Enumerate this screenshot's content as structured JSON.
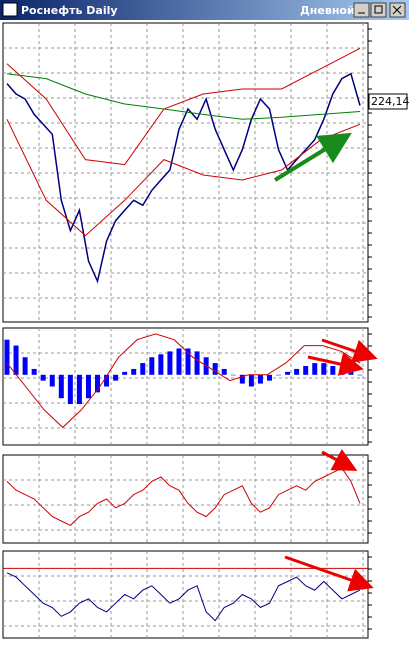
{
  "window": {
    "title": "Роснефть Daily",
    "mode": "Дневной",
    "price_label": "224,14"
  },
  "chart_data": [
    {
      "type": "line",
      "ylim": [
        172,
        244
      ],
      "series": [
        {
          "color": "#00007f",
          "style": "line",
          "values": [
            229.4,
            226.9,
            225.7,
            222.0,
            219.6,
            217.2,
            201.3,
            194.0,
            198.9,
            186.7,
            181.8,
            191.5,
            196.4,
            198.9,
            201.3,
            200.1,
            203.7,
            206.2,
            208.6,
            218.4,
            223.3,
            220.8,
            225.7,
            218.4,
            213.5,
            208.6,
            213.5,
            220.8,
            225.7,
            223.3,
            213.5,
            208.6,
            211.1,
            213.5,
            215.9,
            220.8,
            226.9,
            230.6,
            231.8,
            224.14
          ]
        },
        {
          "color": "#cc0000",
          "style": "line",
          "values": [
            234.2,
            225.7,
            211.1,
            209.9,
            223.3,
            226.9,
            228.1,
            228.1,
            233.0,
            237.9
          ]
        },
        {
          "color": "#cc0000",
          "style": "line",
          "values": [
            220.8,
            201.3,
            192.8,
            201.3,
            211.1,
            207.4,
            206.2,
            208.6,
            215.9,
            219.6
          ]
        },
        {
          "color": "#007f00",
          "style": "line",
          "values": [
            231.8,
            230.6,
            226.9,
            224.5,
            223.3,
            222.0,
            220.8,
            221.3,
            222.0,
            222.7
          ]
        }
      ]
    },
    {
      "type": "bar",
      "ylim": [
        -1.2,
        0.8
      ],
      "series": [
        {
          "color": "#0000ff",
          "style": "bar",
          "values": [
            0.6,
            0.5,
            0.3,
            0.1,
            -0.1,
            -0.2,
            -0.4,
            -0.5,
            -0.5,
            -0.4,
            -0.3,
            -0.2,
            -0.1,
            0.05,
            0.1,
            0.2,
            0.3,
            0.35,
            0.4,
            0.45,
            0.45,
            0.4,
            0.3,
            0.2,
            0.1,
            0.0,
            -0.15,
            -0.2,
            -0.15,
            -0.1,
            0.0,
            0.05,
            0.1,
            0.15,
            0.2,
            0.2,
            0.15,
            0.1,
            0.05,
            0.0
          ]
        },
        {
          "color": "#cc0000",
          "style": "line",
          "values": [
            0.2,
            -0.2,
            -0.6,
            -0.9,
            -0.6,
            -0.2,
            0.3,
            0.6,
            0.7,
            0.6,
            0.3,
            0.1,
            -0.1,
            0.0,
            0.0,
            0.2,
            0.5,
            0.5,
            0.4,
            0.2
          ]
        }
      ]
    },
    {
      "type": "line",
      "ylim": [
        0,
        100
      ],
      "series": [
        {
          "color": "#cc0000",
          "style": "line",
          "values": [
            70,
            60,
            55,
            50,
            40,
            30,
            25,
            20,
            30,
            35,
            45,
            50,
            40,
            45,
            55,
            60,
            70,
            75,
            65,
            60,
            45,
            35,
            30,
            40,
            55,
            60,
            65,
            45,
            35,
            40,
            55,
            60,
            65,
            60,
            70,
            75,
            80,
            85,
            70,
            45
          ]
        }
      ]
    },
    {
      "type": "line",
      "ylim": [
        0,
        100
      ],
      "levels": [
        80
      ],
      "series": [
        {
          "color": "#00007f",
          "style": "line",
          "values": [
            75,
            70,
            60,
            50,
            40,
            35,
            25,
            30,
            40,
            45,
            35,
            30,
            40,
            50,
            45,
            55,
            60,
            50,
            40,
            45,
            55,
            60,
            30,
            20,
            35,
            40,
            50,
            45,
            35,
            40,
            60,
            65,
            70,
            60,
            55,
            65,
            55,
            45,
            50,
            55
          ]
        }
      ]
    }
  ]
}
